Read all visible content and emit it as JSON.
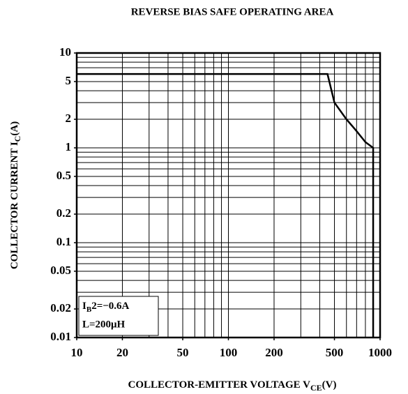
{
  "chart_data": {
    "type": "line",
    "title": "REVERSE BIAS SAFE OPERATING AREA",
    "xlabel": {
      "text": "COLLECTOR-EMITTER VOLTAGE V",
      "sub": "CE",
      "unit": "(V)"
    },
    "ylabel": {
      "text": "COLLECTOR CURRENT I",
      "sub": "C",
      "unit": "(A)"
    },
    "annotations": [
      {
        "text": "I",
        "sub": "B",
        "rest": "2=−0.6A"
      },
      {
        "text": "L=200μH"
      }
    ],
    "xscale": "log",
    "yscale": "log",
    "grid": true,
    "xlim": [
      10,
      1000
    ],
    "ylim": [
      0.01,
      10
    ],
    "xticks": [
      10,
      20,
      50,
      100,
      200,
      500,
      1000
    ],
    "yticks": [
      10,
      5,
      2,
      1,
      0.5,
      0.2,
      0.1,
      0.05,
      0.02,
      0.01
    ],
    "xgrid": [
      20,
      30,
      40,
      50,
      60,
      70,
      80,
      90,
      100,
      200,
      300,
      400,
      500,
      600,
      700,
      800,
      900
    ],
    "ygrid": [
      0.02,
      0.03,
      0.04,
      0.05,
      0.06,
      0.07,
      0.08,
      0.09,
      0.1,
      0.2,
      0.3,
      0.4,
      0.5,
      0.6,
      0.7,
      0.8,
      0.9,
      1,
      2,
      3,
      4,
      5,
      6,
      7,
      8,
      9
    ],
    "series": [
      {
        "color": "#000000",
        "x": [
          10,
          450,
          500,
          600,
          700,
          800,
          900,
          900
        ],
        "values": [
          6,
          6,
          3,
          2,
          1.5,
          1.15,
          1,
          0.01
        ]
      }
    ]
  }
}
